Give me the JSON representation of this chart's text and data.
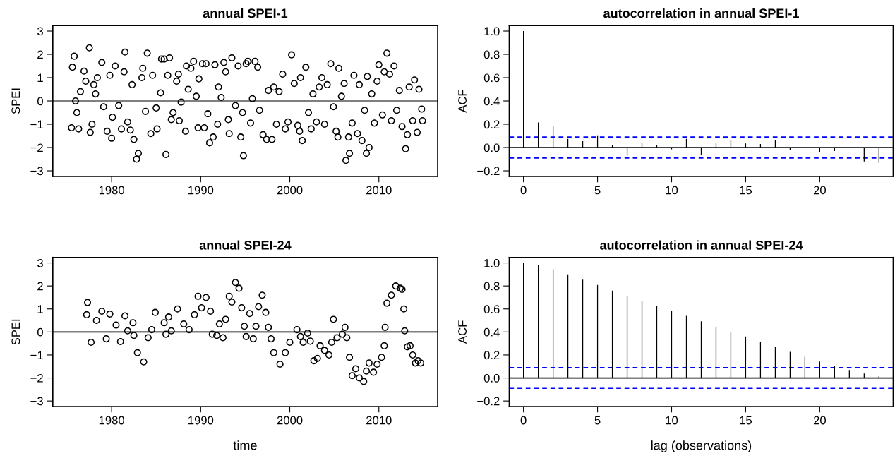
{
  "chart_data": [
    {
      "type": "scatter",
      "title": "annual SPEI-1",
      "ylabel": "SPEI",
      "marker": "circle",
      "grid": false,
      "legend": false,
      "xlim": [
        1973.4,
        2016.6
      ],
      "xticks": [
        1980,
        1990,
        2000,
        2010
      ],
      "ylim": [
        -3.24,
        3.24
      ],
      "yticks": [
        {
          "value": -3,
          "label": "−3"
        },
        {
          "value": -2,
          "label": "−2"
        },
        {
          "value": -1,
          "label": "−1"
        },
        0,
        1,
        2,
        3
      ],
      "ref_lines": [
        {
          "axis": "y",
          "value": 0,
          "color": "#555555",
          "line_style": "solid"
        }
      ],
      "series": [
        {
          "color": "#000000",
          "x": [
            1975.5,
            1975.6,
            1975.8,
            1975.95,
            1976.1,
            1976.3,
            1976.5,
            1976.9,
            1977.1,
            1977.5,
            1977.6,
            1977.8,
            1978.0,
            1978.2,
            1978.4,
            1978.9,
            1979.1,
            1979.5,
            1979.8,
            1980.0,
            1980.1,
            1980.4,
            1980.8,
            1981.1,
            1981.4,
            1981.5,
            1981.8,
            1982.1,
            1982.3,
            1982.5,
            1982.8,
            1983.0,
            1983.4,
            1983.5,
            1983.8,
            1984.0,
            1984.4,
            1984.6,
            1985.0,
            1985.1,
            1985.5,
            1985.6,
            1985.9,
            1986.1,
            1986.3,
            1986.5,
            1986.7,
            1986.9,
            1987.3,
            1987.5,
            1987.6,
            1987.8,
            1988.3,
            1988.4,
            1988.6,
            1988.9,
            1989.2,
            1989.5,
            1989.7,
            1989.8,
            1990.2,
            1990.4,
            1990.6,
            1990.8,
            1991.0,
            1991.4,
            1991.6,
            1991.9,
            1992.0,
            1992.3,
            1992.6,
            1992.8,
            1993.1,
            1993.2,
            1993.5,
            1993.9,
            1994.2,
            1994.5,
            1994.7,
            1994.8,
            1995.1,
            1995.3,
            1995.6,
            1995.8,
            1996.1,
            1996.4,
            1996.6,
            1997.0,
            1997.4,
            1997.6,
            1998.0,
            1998.2,
            1998.5,
            1998.8,
            1999.2,
            1999.5,
            1999.8,
            2000.2,
            2000.5,
            2000.9,
            2001.1,
            2001.2,
            2001.4,
            2001.8,
            2002.1,
            2002.4,
            2002.6,
            2003.0,
            2003.3,
            2003.6,
            2003.9,
            2004.2,
            2004.6,
            2004.9,
            2005.2,
            2005.4,
            2005.5,
            2005.8,
            2006.1,
            2006.3,
            2006.6,
            2006.7,
            2007.0,
            2007.2,
            2007.6,
            2007.8,
            2008.1,
            2008.4,
            2008.6,
            2008.7,
            2008.9,
            2009.2,
            2009.5,
            2009.8,
            2010.0,
            2010.4,
            2010.6,
            2010.9,
            2011.2,
            2011.4,
            2011.7,
            2012.0,
            2012.3,
            2012.6,
            2013.0,
            2013.2,
            2013.4,
            2013.8,
            2014.0,
            2014.3,
            2014.5,
            2014.8,
            2014.9
          ],
          "values": [
            -1.15,
            1.45,
            1.92,
            0.0,
            -0.5,
            -1.2,
            0.4,
            1.28,
            0.85,
            2.28,
            -1.35,
            -1.0,
            0.7,
            0.3,
            1.0,
            1.65,
            -0.25,
            -1.3,
            1.1,
            -1.6,
            -0.7,
            1.5,
            -0.2,
            -1.2,
            1.25,
            2.1,
            -0.9,
            -1.25,
            0.7,
            -1.65,
            -2.5,
            -2.25,
            1.0,
            1.4,
            -0.45,
            2.05,
            -1.4,
            1.1,
            -0.3,
            -1.2,
            0.35,
            1.8,
            1.8,
            -2.3,
            1.1,
            1.85,
            -0.8,
            -0.5,
            0.85,
            1.15,
            -0.85,
            -0.05,
            -1.3,
            1.5,
            0.5,
            1.4,
            1.7,
            0.2,
            -1.15,
            0.95,
            1.6,
            -1.15,
            1.6,
            -0.55,
            -1.8,
            -1.55,
            1.55,
            -1.0,
            0.6,
            0.15,
            1.65,
            1.25,
            -0.8,
            -1.4,
            1.85,
            -0.2,
            1.5,
            -1.55,
            -0.5,
            -2.35,
            1.6,
            1.7,
            -0.95,
            0.1,
            1.7,
            1.45,
            -0.4,
            -1.45,
            -1.65,
            0.45,
            -1.65,
            0.6,
            -1.0,
            0.4,
            1.15,
            -1.2,
            -0.9,
            1.98,
            0.75,
            -1.05,
            -1.3,
            1.0,
            -1.7,
            1.45,
            -0.5,
            -1.2,
            0.3,
            -0.9,
            0.6,
            1.0,
            -1.0,
            0.7,
            1.6,
            -0.25,
            -1.3,
            -1.55,
            1.4,
            0.2,
            0.75,
            -2.55,
            -1.55,
            -2.25,
            -0.95,
            1.1,
            -1.4,
            0.7,
            -1.7,
            -0.4,
            -2.25,
            1.05,
            -2.0,
            0.3,
            -0.95,
            0.85,
            1.55,
            -0.6,
            1.25,
            2.05,
            1.15,
            -0.85,
            1.5,
            -0.4,
            0.45,
            -1.1,
            -2.05,
            -1.45,
            0.6,
            -0.85,
            0.9,
            -1.35,
            0.5,
            -0.35,
            -0.85
          ]
        }
      ]
    },
    {
      "type": "bar",
      "title": "autocorrelation in annual SPEI-1",
      "ylabel": "ACF",
      "grid": false,
      "legend": false,
      "xlim": [
        -0.96,
        24.96
      ],
      "xticks": [
        0,
        5,
        10,
        15,
        20
      ],
      "ylim": [
        -0.248,
        1.048
      ],
      "yticks": [
        {
          "value": -0.2,
          "label": "−0.2"
        },
        {
          "value": 0,
          "label": "0.0"
        },
        {
          "value": 0.2,
          "label": "0.2"
        },
        {
          "value": 0.4,
          "label": "0.4"
        },
        {
          "value": 0.6,
          "label": "0.6"
        },
        {
          "value": 0.8,
          "label": "0.8"
        },
        {
          "value": 1,
          "label": "1.0"
        }
      ],
      "ref_lines": [
        {
          "axis": "y",
          "value": 0,
          "color": "#000000",
          "line_style": "solid"
        },
        {
          "axis": "y",
          "value": 0.09,
          "color": "#0000ff",
          "line_style": "dashed"
        },
        {
          "axis": "y",
          "value": -0.09,
          "color": "#0000ff",
          "line_style": "dashed"
        }
      ],
      "series": [
        {
          "color": "#000000",
          "x": [
            0,
            1,
            2,
            3,
            4,
            5,
            6,
            7,
            8,
            9,
            10,
            11,
            12,
            13,
            14,
            15,
            16,
            17,
            18,
            19,
            20,
            21,
            22,
            23,
            24
          ],
          "values": [
            1.0,
            0.215,
            0.18,
            0.075,
            0.055,
            0.105,
            0.025,
            -0.07,
            0.04,
            0.02,
            -0.015,
            0.075,
            -0.06,
            0.04,
            0.06,
            0.035,
            0.03,
            0.065,
            -0.02,
            0.0,
            -0.04,
            -0.03,
            null,
            -0.12,
            -0.13
          ]
        }
      ]
    },
    {
      "type": "scatter",
      "title": "annual SPEI-24",
      "xlabel": "time",
      "ylabel": "SPEI",
      "marker": "circle",
      "grid": false,
      "legend": false,
      "xlim": [
        1973.4,
        2016.6
      ],
      "xticks": [
        1980,
        1990,
        2000,
        2010
      ],
      "ylim": [
        -3.24,
        3.24
      ],
      "yticks": [
        {
          "value": -3,
          "label": "−3"
        },
        {
          "value": -2,
          "label": "−2"
        },
        {
          "value": -1,
          "label": "−1"
        },
        0,
        1,
        2,
        3
      ],
      "ref_lines": [
        {
          "axis": "y",
          "value": 0,
          "color": "#000000",
          "line_style": "solid"
        }
      ],
      "series": [
        {
          "color": "#000000",
          "x": [
            1977.3,
            1977.2,
            1977.7,
            1978.3,
            1978.9,
            1979.4,
            1979.8,
            1980.5,
            1981.0,
            1981.5,
            1981.8,
            1982.4,
            1982.5,
            1982.9,
            1983.6,
            1984.1,
            1984.5,
            1984.9,
            1985.9,
            1986.1,
            1986.4,
            1986.7,
            1987.4,
            1988.1,
            1988.7,
            1989.3,
            1989.7,
            1990.1,
            1990.6,
            1991.1,
            1991.3,
            1991.8,
            1992.1,
            1992.5,
            1992.8,
            1993.2,
            1993.5,
            1993.9,
            1994.3,
            1994.6,
            1994.9,
            1995.1,
            1995.5,
            1995.9,
            1996.2,
            1996.5,
            1996.9,
            1997.3,
            1997.6,
            1997.9,
            1998.2,
            1998.9,
            1999.5,
            2000.0,
            2000.8,
            2001.2,
            2001.5,
            2002.0,
            2002.3,
            2002.7,
            2003.1,
            2003.4,
            2003.9,
            2004.4,
            2004.7,
            2004.9,
            2005.3,
            2005.9,
            2006.2,
            2006.4,
            2006.7,
            2007.0,
            2007.4,
            2007.8,
            2008.3,
            2008.6,
            2008.9,
            2009.4,
            2009.8,
            2010.3,
            2010.6,
            2010.7,
            2010.9,
            2011.4,
            2011.9,
            2012.4,
            2012.6,
            2012.8,
            2012.9,
            2013.2,
            2013.5,
            2013.8,
            2014.1,
            2014.4,
            2014.7
          ],
          "values": [
            1.28,
            0.75,
            -0.45,
            0.5,
            0.9,
            -0.3,
            0.78,
            0.3,
            -0.42,
            0.7,
            0.05,
            0.4,
            -0.15,
            -0.9,
            -1.3,
            -0.25,
            0.1,
            0.85,
            0.4,
            -0.1,
            0.65,
            0.05,
            1.0,
            0.35,
            0.1,
            0.75,
            1.55,
            1.05,
            1.5,
            0.9,
            -0.1,
            -0.15,
            0.35,
            -0.25,
            0.55,
            1.55,
            1.3,
            2.15,
            1.9,
            1.05,
            0.25,
            -0.2,
            0.8,
            -0.3,
            0.25,
            1.1,
            1.6,
            0.85,
            0.2,
            -0.3,
            -0.9,
            -1.4,
            -0.9,
            -0.45,
            0.1,
            -0.2,
            -0.45,
            -0.05,
            -0.4,
            -1.25,
            -1.15,
            -0.6,
            -0.8,
            -1.0,
            -0.45,
            0.55,
            -0.25,
            -0.1,
            0.2,
            -0.25,
            -1.1,
            -1.9,
            -1.6,
            -2.0,
            -2.15,
            -1.7,
            -1.35,
            -1.75,
            -1.4,
            -1.1,
            -0.6,
            0.2,
            1.25,
            1.6,
            2.0,
            1.9,
            1.85,
            1.0,
            0.05,
            -0.65,
            -0.6,
            -1.0,
            -1.35,
            -1.25,
            -1.35
          ]
        }
      ]
    },
    {
      "type": "bar",
      "title": "autocorrelation in annual SPEI-24",
      "xlabel": "lag (observations)",
      "ylabel": "ACF",
      "grid": false,
      "legend": false,
      "xlim": [
        -0.96,
        24.96
      ],
      "xticks": [
        0,
        5,
        10,
        15,
        20
      ],
      "ylim": [
        -0.248,
        1.048
      ],
      "yticks": [
        {
          "value": -0.2,
          "label": "−0.2"
        },
        {
          "value": 0,
          "label": "0.0"
        },
        {
          "value": 0.2,
          "label": "0.2"
        },
        {
          "value": 0.4,
          "label": "0.4"
        },
        {
          "value": 0.6,
          "label": "0.6"
        },
        {
          "value": 0.8,
          "label": "0.8"
        },
        {
          "value": 1,
          "label": "1.0"
        }
      ],
      "ref_lines": [
        {
          "axis": "y",
          "value": 0,
          "color": "#000000",
          "line_style": "solid"
        },
        {
          "axis": "y",
          "value": 0.09,
          "color": "#0000ff",
          "line_style": "dashed"
        },
        {
          "axis": "y",
          "value": -0.09,
          "color": "#0000ff",
          "line_style": "dashed"
        }
      ],
      "series": [
        {
          "color": "#000000",
          "x": [
            0,
            1,
            2,
            3,
            4,
            5,
            6,
            7,
            8,
            9,
            10,
            11,
            12,
            13,
            14,
            15,
            16,
            17,
            18,
            19,
            20,
            21,
            22,
            23,
            24
          ],
          "values": [
            1.0,
            0.98,
            0.945,
            0.9,
            0.855,
            0.808,
            0.76,
            0.712,
            0.668,
            0.626,
            0.583,
            0.54,
            0.493,
            0.447,
            0.403,
            0.36,
            0.316,
            0.272,
            0.228,
            0.185,
            0.143,
            0.105,
            0.07,
            0.038,
            0.015
          ]
        }
      ]
    }
  ]
}
